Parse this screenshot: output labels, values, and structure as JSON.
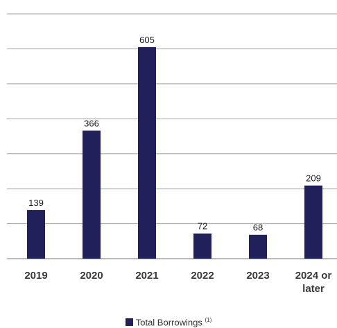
{
  "chart_data": {
    "type": "bar",
    "categories": [
      "2019",
      "2020",
      "2021",
      "2022",
      "2023",
      "2024 or later"
    ],
    "series": [
      {
        "name": "Total Borrowings",
        "values": [
          139,
          366,
          605,
          72,
          68,
          209
        ],
        "color": "#22205a"
      }
    ],
    "data_labels": [
      "139",
      "366",
      "605",
      "72",
      "68",
      "209"
    ],
    "ylim": [
      0,
      700
    ],
    "grid": true,
    "legend": {
      "label": "Total Borrowings",
      "superscript": "(1)",
      "position": "bottom-center"
    },
    "gridline_color": "#9e9e9e"
  }
}
